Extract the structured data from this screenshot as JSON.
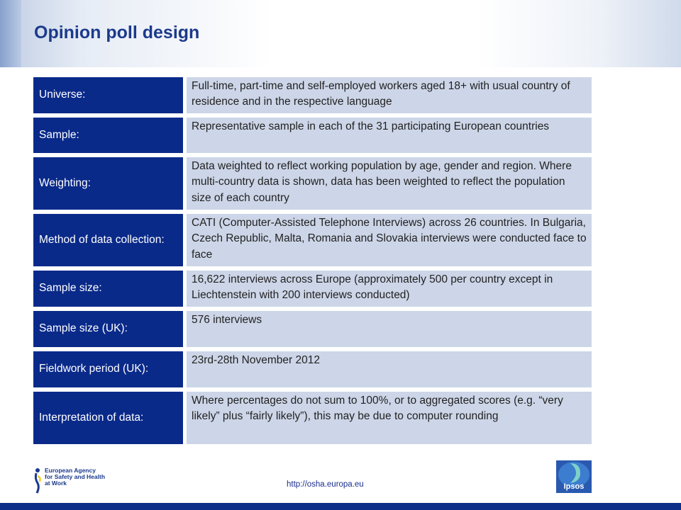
{
  "page": {
    "title": "Opinion poll design",
    "footer_url": "http://osha.europa.eu"
  },
  "rows": [
    {
      "label": "Universe:",
      "value": "Full-time, part-time and self-employed workers aged 18+ with usual country of residence and in the respective language"
    },
    {
      "label": "Sample:",
      "value": "Representative sample in each of the 31 participating European countries"
    },
    {
      "label": "Weighting:",
      "value": "Data weighted to reflect working population by age, gender and region. Where multi-country data is shown, data has been weighted to reflect the population size of each country"
    },
    {
      "label": "Method of data collection:",
      "value": "CATI (Computer-Assisted Telephone Interviews) across 26 countries. In Bulgaria, Czech Republic, Malta, Romania and Slovakia interviews were conducted face to face"
    },
    {
      "label": "Sample size:",
      "value": "16,622 interviews across Europe (approximately 500 per country except in Liechtenstein with 200 interviews conducted)"
    },
    {
      "label": "Sample size (UK):",
      "value": "576 interviews"
    },
    {
      "label": "Fieldwork period (UK):",
      "value": "23rd-28th November 2012"
    },
    {
      "label": "Interpretation of data:",
      "value": "Where percentages do not sum to 100%, or to aggregated scores (e.g. “very likely” plus “fairly likely”), this may be due to computer rounding"
    }
  ],
  "logos": {
    "osha_lines": [
      "European Agency",
      "for Safety and Health",
      "at Work"
    ],
    "ipsos_text": "Ipsos"
  },
  "colors": {
    "label_bg": "#0a2a8a",
    "value_bg": "#cdd6e8",
    "title": "#1b3a8c",
    "bottom_bar": "#0d2f8a"
  }
}
